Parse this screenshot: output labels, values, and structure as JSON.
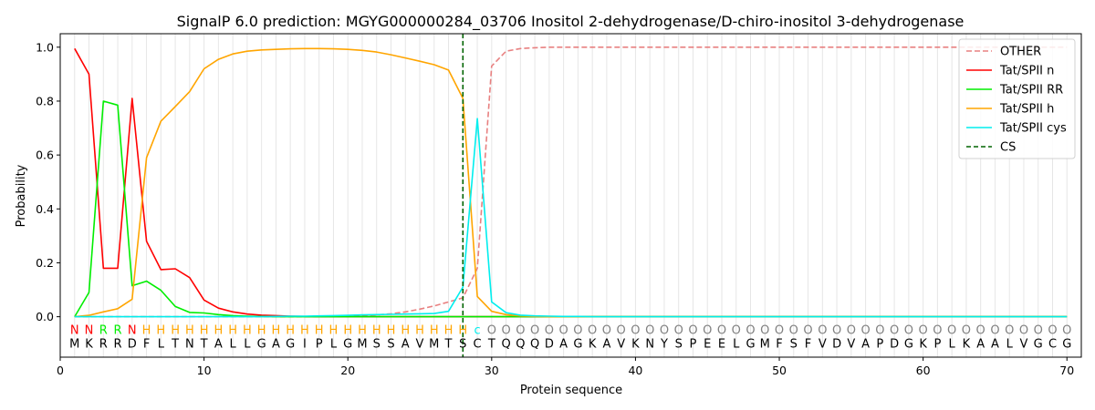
{
  "chart_data": {
    "type": "line",
    "title": "SignalP 6.0 prediction: MGYG000000284_03706 Inositol 2-dehydrogenase/D-chiro-inositol 3-dehydrogenase",
    "xlabel": "Protein sequence",
    "ylabel": "Probability",
    "xlim": [
      0,
      71
    ],
    "ylim": [
      -0.15,
      1.05
    ],
    "xticks": [
      0,
      10,
      20,
      30,
      40,
      50,
      60,
      70
    ],
    "yticks": [
      0.0,
      0.2,
      0.4,
      0.6,
      0.8,
      1.0
    ],
    "grid": "vertical lines at each residue",
    "legend_position": "top-right",
    "sequence": [
      "M",
      "K",
      "R",
      "R",
      "D",
      "F",
      "L",
      "T",
      "N",
      "T",
      "A",
      "L",
      "L",
      "G",
      "A",
      "G",
      "I",
      "P",
      "L",
      "G",
      "M",
      "S",
      "S",
      "A",
      "V",
      "M",
      "T",
      "S",
      "C",
      "T",
      "Q",
      "Q",
      "Q",
      "D",
      "A",
      "G",
      "K",
      "A",
      "V",
      "K",
      "N",
      "Y",
      "S",
      "P",
      "E",
      "E",
      "L",
      "G",
      "M",
      "F",
      "S",
      "F",
      "V",
      "D",
      "V",
      "A",
      "P",
      "D",
      "G",
      "K",
      "P",
      "L",
      "K",
      "A",
      "A",
      "L",
      "V",
      "G",
      "C",
      "G"
    ],
    "region_labels": [
      "N",
      "N",
      "R",
      "R",
      "N",
      "H",
      "H",
      "H",
      "H",
      "H",
      "H",
      "H",
      "H",
      "H",
      "H",
      "H",
      "H",
      "H",
      "H",
      "H",
      "H",
      "H",
      "H",
      "H",
      "H",
      "H",
      "H",
      "H",
      "c",
      "O",
      "O",
      "O",
      "O",
      "O",
      "O",
      "O",
      "O",
      "O",
      "O",
      "O",
      "O",
      "O",
      "O",
      "O",
      "O",
      "O",
      "O",
      "O",
      "O",
      "O",
      "O",
      "O",
      "O",
      "O",
      "O",
      "O",
      "O",
      "O",
      "O",
      "O",
      "O",
      "O",
      "O",
      "O",
      "O",
      "O",
      "O",
      "O",
      "O",
      "O"
    ],
    "region_colors": {
      "N": "#ff0000",
      "R": "#00ee00",
      "H": "#ffa500",
      "c": "#00eeee",
      "O": "#808080"
    },
    "cleavage_site": 28,
    "series": [
      {
        "name": "OTHER",
        "color": "#e88080",
        "dash": true,
        "values": [
          0,
          0,
          0,
          0,
          0,
          0,
          0,
          0,
          0,
          0,
          0,
          0,
          0,
          0,
          0,
          0,
          0,
          0,
          0,
          0,
          0.004,
          0.007,
          0.011,
          0.018,
          0.028,
          0.04,
          0.055,
          0.07,
          0.18,
          0.93,
          0.985,
          0.995,
          0.998,
          1,
          1,
          1,
          1,
          1,
          1,
          1,
          1,
          1,
          1,
          1,
          1,
          1,
          1,
          1,
          1,
          1,
          1,
          1,
          1,
          1,
          1,
          1,
          1,
          1,
          1,
          1,
          1,
          1,
          1,
          1,
          1,
          1,
          1,
          1,
          1,
          1
        ]
      },
      {
        "name": "Tat/SPII n",
        "color": "#ff0000",
        "dash": false,
        "values": [
          0.995,
          0.9,
          0.18,
          0.18,
          0.81,
          0.28,
          0.175,
          0.178,
          0.145,
          0.062,
          0.032,
          0.018,
          0.01,
          0.006,
          0.004,
          0.002,
          0.001,
          0,
          0,
          0,
          0,
          0,
          0,
          0,
          0,
          0,
          0,
          0,
          0,
          0,
          0,
          0,
          0,
          0,
          0,
          0,
          0,
          0,
          0,
          0,
          0,
          0,
          0,
          0,
          0,
          0,
          0,
          0,
          0,
          0,
          0,
          0,
          0,
          0,
          0,
          0,
          0,
          0,
          0,
          0,
          0,
          0,
          0,
          0,
          0,
          0,
          0,
          0,
          0,
          0
        ]
      },
      {
        "name": "Tat/SPII RR",
        "color": "#00ee00",
        "dash": false,
        "values": [
          0,
          0.09,
          0.8,
          0.785,
          0.115,
          0.132,
          0.098,
          0.038,
          0.016,
          0.014,
          0.008,
          0.004,
          0.002,
          0.001,
          0,
          0,
          0,
          0,
          0,
          0,
          0,
          0,
          0,
          0,
          0,
          0,
          0,
          0,
          0,
          0,
          0,
          0,
          0,
          0,
          0,
          0,
          0,
          0,
          0,
          0,
          0,
          0,
          0,
          0,
          0,
          0,
          0,
          0,
          0,
          0,
          0,
          0,
          0,
          0,
          0,
          0,
          0,
          0,
          0,
          0,
          0,
          0,
          0,
          0,
          0,
          0,
          0,
          0,
          0,
          0
        ]
      },
      {
        "name": "Tat/SPII h",
        "color": "#ffa500",
        "dash": false,
        "values": [
          0,
          0.005,
          0.018,
          0.03,
          0.065,
          0.59,
          0.725,
          0.78,
          0.835,
          0.92,
          0.955,
          0.975,
          0.985,
          0.99,
          0.992,
          0.994,
          0.995,
          0.995,
          0.994,
          0.992,
          0.988,
          0.982,
          0.972,
          0.96,
          0.948,
          0.935,
          0.915,
          0.81,
          0.075,
          0.02,
          0.008,
          0.003,
          0.001,
          0,
          0,
          0,
          0,
          0,
          0,
          0,
          0,
          0,
          0,
          0,
          0,
          0,
          0,
          0,
          0,
          0,
          0,
          0,
          0,
          0,
          0,
          0,
          0,
          0,
          0,
          0,
          0,
          0,
          0,
          0,
          0,
          0,
          0,
          0,
          0,
          0
        ]
      },
      {
        "name": "Tat/SPII cys",
        "color": "#00eeee",
        "dash": false,
        "values": [
          0,
          0,
          0,
          0,
          0,
          0,
          0,
          0,
          0,
          0,
          0,
          0,
          0,
          0,
          0.001,
          0.002,
          0.002,
          0.003,
          0.004,
          0.005,
          0.007,
          0.008,
          0.009,
          0.01,
          0.011,
          0.012,
          0.02,
          0.11,
          0.735,
          0.055,
          0.015,
          0.006,
          0.003,
          0.002,
          0.001,
          0.001,
          0,
          0,
          0,
          0,
          0,
          0,
          0,
          0,
          0,
          0,
          0,
          0,
          0,
          0,
          0,
          0,
          0,
          0,
          0,
          0,
          0,
          0,
          0,
          0,
          0,
          0,
          0,
          0,
          0,
          0,
          0,
          0,
          0,
          0
        ]
      }
    ],
    "cs_legend_label": "CS",
    "cs_color": "#006400"
  }
}
